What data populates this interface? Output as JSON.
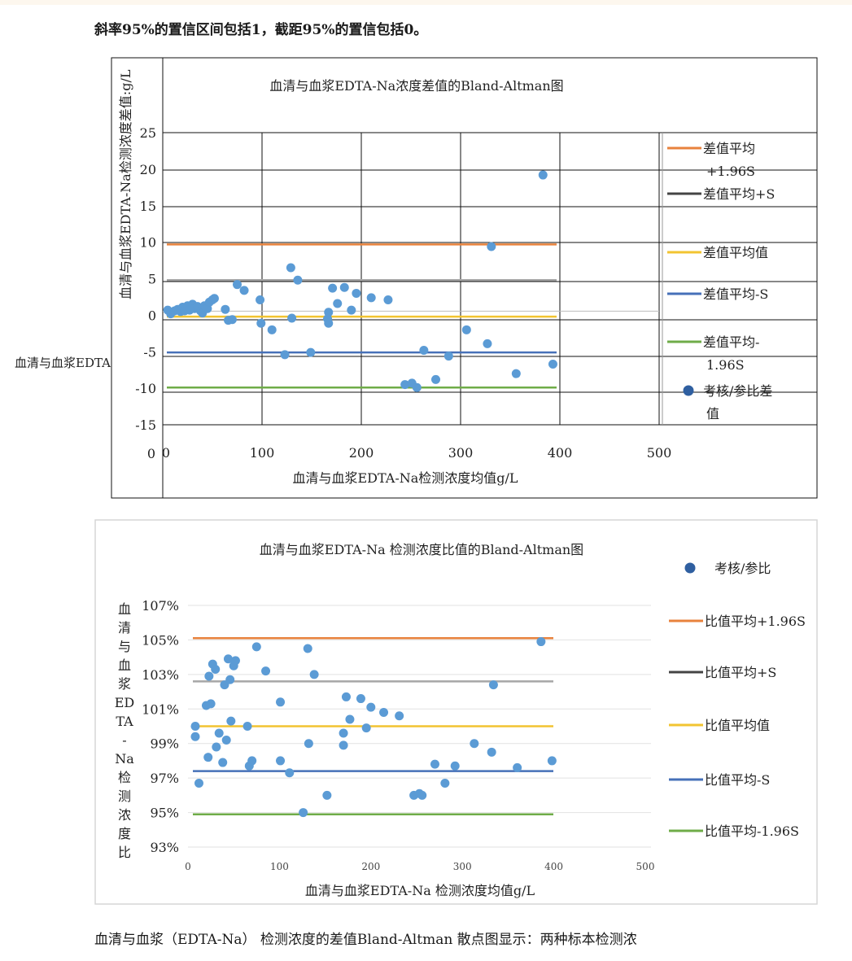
{
  "intro_text": "斜率95%的置信区间包括1，截距95%的置信包括0。",
  "bottom_text": "血清与血浆（EDTA-Na）  检测浓度的差值Bland-Altman  散点图显示：两种标本检测浓",
  "colors": {
    "orange": "#e8823c",
    "gray": "#a6a6a6",
    "yellow": "#f2c431",
    "blue": "#4670b8",
    "green": "#6fac48",
    "dots": "#5b9bd5"
  },
  "chart_data": [
    {
      "type": "scatter",
      "title": "血清与血浆EDTA-Na浓度差值的Bland-Altman图",
      "xlabel": "血清与血浆EDTA-Na检测浓度均值g/L",
      "ylabel": "血清与血浆EDTA-Na检测浓度差值:g/L",
      "side_label": "血清与血浆EDTA",
      "xlim": [
        0,
        500
      ],
      "ylim": [
        -15,
        25
      ],
      "x_ticks": [
        "0",
        "100",
        "200",
        "300",
        "400",
        "500"
      ],
      "y_ticks": [
        "25",
        "20",
        "15",
        "10",
        "5",
        "0",
        "-5",
        "-10",
        "-15"
      ],
      "y_tick_values": [
        25,
        20,
        15,
        10,
        5,
        0,
        -5,
        -10,
        -15
      ],
      "x_tick_values": [
        0,
        100,
        200,
        300,
        400,
        500
      ],
      "hlines": [
        {
          "name": "差值平均+1.96S",
          "value": 9.7,
          "color": "#e8823c"
        },
        {
          "name": "差值平均+S",
          "value": 4.8,
          "color": "#a6a6a6"
        },
        {
          "name": "差值平均值",
          "value": -0.2,
          "color": "#f2c431"
        },
        {
          "name": "差值平均-S",
          "value": -5.1,
          "color": "#4670b8"
        },
        {
          "name": "差值平均-1.96S",
          "value": -9.9,
          "color": "#6fac48"
        }
      ],
      "legend": [
        {
          "label": "差值平均+1.96S",
          "color": "#e8823c",
          "kind": "line"
        },
        {
          "label": "差值平均+S",
          "color": "#444444",
          "kind": "line"
        },
        {
          "label": "差值平均值",
          "color": "#f2c431",
          "kind": "line"
        },
        {
          "label": "差值平均-S",
          "color": "#4670b8",
          "kind": "line"
        },
        {
          "label": "差值平均-1.96S",
          "color": "#6fac48",
          "kind": "line"
        },
        {
          "label": "考核/参比差值",
          "color": "#2f5fa0",
          "kind": "dot"
        }
      ],
      "series": [
        {
          "name": "考核/参比差值",
          "points": [
            [
              5,
              0.7
            ],
            [
              8,
              0.2
            ],
            [
              12,
              0.6
            ],
            [
              15,
              0.8
            ],
            [
              18,
              0.5
            ],
            [
              20,
              1.1
            ],
            [
              22,
              0.6
            ],
            [
              25,
              1.3
            ],
            [
              27,
              0.7
            ],
            [
              30,
              1.5
            ],
            [
              32,
              0.9
            ],
            [
              35,
              1.2
            ],
            [
              38,
              0.6
            ],
            [
              40,
              0.3
            ],
            [
              42,
              1.3
            ],
            [
              45,
              0.9
            ],
            [
              47,
              1.8
            ],
            [
              50,
              2.1
            ],
            [
              52,
              2.3
            ],
            [
              63,
              0.8
            ],
            [
              66,
              -0.7
            ],
            [
              70,
              -0.6
            ],
            [
              75,
              4.2
            ],
            [
              82,
              3.4
            ],
            [
              98,
              2.1
            ],
            [
              99,
              -1.1
            ],
            [
              110,
              -2.0
            ],
            [
              123,
              -5.4
            ],
            [
              129,
              6.5
            ],
            [
              130,
              -0.4
            ],
            [
              136,
              4.8
            ],
            [
              149,
              -5.1
            ],
            [
              166,
              -0.5
            ],
            [
              167,
              -1.1
            ],
            [
              167,
              0.4
            ],
            [
              171,
              3.7
            ],
            [
              176,
              1.6
            ],
            [
              183,
              3.8
            ],
            [
              190,
              0.7
            ],
            [
              195,
              3.0
            ],
            [
              210,
              2.4
            ],
            [
              227,
              2.1
            ],
            [
              244,
              -9.5
            ],
            [
              251,
              -9.3
            ],
            [
              256,
              -9.9
            ],
            [
              263,
              -4.8
            ],
            [
              275,
              -8.8
            ],
            [
              288,
              -5.6
            ],
            [
              306,
              -2.0
            ],
            [
              327,
              -3.9
            ],
            [
              331,
              9.4
            ],
            [
              356,
              -8.0
            ],
            [
              383,
              19.2
            ],
            [
              393,
              -6.7
            ]
          ]
        }
      ]
    },
    {
      "type": "scatter",
      "title": "血清与血浆EDTA-Na 检测浓度比值的Bland-Altman图",
      "xlabel": "血清与血浆EDTA-Na 检测浓度均值g/L",
      "ylabel": "血清与血浆EDTA-Na检测浓度比",
      "xlim": [
        0,
        500
      ],
      "ylim": [
        93,
        107
      ],
      "x_ticks": [
        "0",
        "100",
        "200",
        "300",
        "400",
        "500"
      ],
      "y_ticks": [
        "107%",
        "105%",
        "103%",
        "101%",
        "99%",
        "97%",
        "95%",
        "93%"
      ],
      "y_tick_values": [
        107,
        105,
        103,
        101,
        99,
        97,
        95,
        93
      ],
      "x_tick_values": [
        0,
        100,
        200,
        300,
        400,
        500
      ],
      "hlines": [
        {
          "name": "比值平均+1.96S",
          "value": 105.1,
          "color": "#e8823c"
        },
        {
          "name": "比值平均+S",
          "value": 102.6,
          "color": "#a6a6a6"
        },
        {
          "name": "比值平均值",
          "value": 100.0,
          "color": "#f2c431"
        },
        {
          "name": "比值平均-S",
          "value": 97.4,
          "color": "#4670b8"
        },
        {
          "name": "比值平均-1.96S",
          "value": 94.9,
          "color": "#6fac48"
        }
      ],
      "legend": [
        {
          "label": "考核/参比",
          "color": "#2f5fa0",
          "kind": "dot"
        },
        {
          "label": "比值平均+1.96S",
          "color": "#e8823c",
          "kind": "line"
        },
        {
          "label": "比值平均+S",
          "color": "#444444",
          "kind": "line"
        },
        {
          "label": "比值平均值",
          "color": "#f2c431",
          "kind": "line"
        },
        {
          "label": "比值平均-S",
          "color": "#4670b8",
          "kind": "line"
        },
        {
          "label": "比值平均-1.96S",
          "color": "#6fac48",
          "kind": "line"
        }
      ],
      "series": [
        {
          "name": "考核/参比",
          "points": [
            [
              8,
              100.0
            ],
            [
              8,
              99.4
            ],
            [
              12,
              96.7
            ],
            [
              20,
              101.2
            ],
            [
              22,
              98.2
            ],
            [
              23,
              102.9
            ],
            [
              25,
              101.3
            ],
            [
              27,
              103.6
            ],
            [
              30,
              103.3
            ],
            [
              31,
              98.8
            ],
            [
              34,
              99.6
            ],
            [
              38,
              97.9
            ],
            [
              40,
              102.4
            ],
            [
              42,
              99.2
            ],
            [
              44,
              103.9
            ],
            [
              46,
              102.7
            ],
            [
              47,
              100.3
            ],
            [
              50,
              103.5
            ],
            [
              52,
              103.8
            ],
            [
              65,
              100.0
            ],
            [
              67,
              97.7
            ],
            [
              70,
              98.0
            ],
            [
              75,
              104.6
            ],
            [
              85,
              103.2
            ],
            [
              101,
              101.4
            ],
            [
              101,
              98.0
            ],
            [
              111,
              97.3
            ],
            [
              126,
              95.0
            ],
            [
              131,
              104.5
            ],
            [
              132,
              99.0
            ],
            [
              138,
              103.0
            ],
            [
              152,
              96.0
            ],
            [
              170,
              99.6
            ],
            [
              170,
              98.9
            ],
            [
              173,
              101.7
            ],
            [
              177,
              100.4
            ],
            [
              189,
              101.6
            ],
            [
              195,
              99.9
            ],
            [
              200,
              101.1
            ],
            [
              214,
              100.8
            ],
            [
              231,
              100.6
            ],
            [
              247,
              96.0
            ],
            [
              253,
              96.1
            ],
            [
              256,
              96.0
            ],
            [
              270,
              97.8
            ],
            [
              281,
              96.7
            ],
            [
              292,
              97.7
            ],
            [
              313,
              99.0
            ],
            [
              332,
              98.5
            ],
            [
              334,
              102.4
            ],
            [
              360,
              97.6
            ],
            [
              386,
              104.9
            ],
            [
              398,
              98.0
            ]
          ]
        }
      ]
    }
  ]
}
